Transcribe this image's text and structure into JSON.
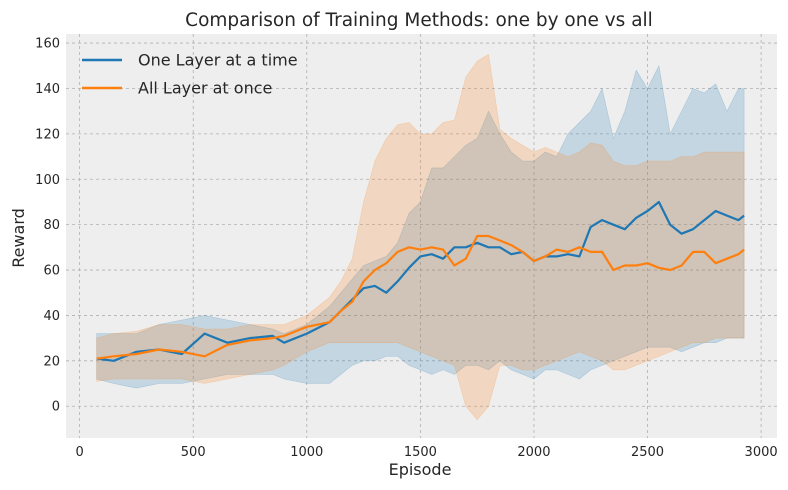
{
  "chart_data": {
    "type": "line",
    "title": "Comparison of Training Methods: one by one vs all",
    "xlabel": "Episode",
    "ylabel": "Reward",
    "xlim": [
      -60,
      3070
    ],
    "ylim": [
      -14,
      164
    ],
    "xticks": [
      0,
      500,
      1000,
      1500,
      2000,
      2500,
      3000
    ],
    "yticks": [
      0,
      20,
      40,
      60,
      80,
      100,
      120,
      140,
      160
    ],
    "grid": true,
    "legend_position": "top-left",
    "colors": {
      "plot_bg": "#eeeeee",
      "grid": "#b0b0b0"
    },
    "series": [
      {
        "name": "One Layer at a time",
        "color": "#1f77b4",
        "x": [
          75,
          150,
          250,
          350,
          450,
          550,
          650,
          750,
          850,
          900,
          1000,
          1100,
          1200,
          1250,
          1300,
          1350,
          1400,
          1450,
          1500,
          1550,
          1600,
          1650,
          1700,
          1750,
          1800,
          1850,
          1900,
          1950,
          2000,
          2050,
          2100,
          2150,
          2200,
          2250,
          2300,
          2350,
          2400,
          2450,
          2500,
          2550,
          2600,
          2650,
          2700,
          2750,
          2800,
          2850,
          2900,
          2925
        ],
        "mean": [
          21,
          20,
          24,
          25,
          23,
          32,
          28,
          30,
          31,
          28,
          32,
          37,
          47,
          52,
          53,
          50,
          55,
          61,
          66,
          67,
          65,
          70,
          70,
          72,
          70,
          70,
          67,
          68,
          64,
          66,
          66,
          67,
          66,
          79,
          82,
          80,
          78,
          83,
          86,
          90,
          80,
          76,
          78,
          82,
          86,
          84,
          82,
          84
        ],
        "upper": [
          32,
          32,
          32,
          36,
          38,
          40,
          38,
          36,
          34,
          32,
          36,
          44,
          56,
          62,
          64,
          66,
          72,
          85,
          90,
          105,
          105,
          110,
          115,
          118,
          130,
          120,
          112,
          108,
          108,
          112,
          110,
          120,
          125,
          130,
          140,
          118,
          130,
          148,
          140,
          150,
          120,
          130,
          140,
          138,
          142,
          130,
          140,
          140
        ],
        "lower": [
          12,
          10,
          8,
          10,
          10,
          12,
          14,
          14,
          14,
          12,
          10,
          10,
          18,
          20,
          20,
          22,
          22,
          18,
          16,
          14,
          16,
          14,
          18,
          18,
          16,
          20,
          16,
          14,
          12,
          16,
          16,
          14,
          12,
          16,
          18,
          20,
          22,
          24,
          26,
          26,
          26,
          24,
          26,
          28,
          28,
          30,
          30,
          30
        ]
      },
      {
        "name": "All Layer at once",
        "color": "#ff7f0e",
        "x": [
          75,
          150,
          250,
          350,
          450,
          550,
          650,
          750,
          850,
          900,
          1000,
          1100,
          1150,
          1200,
          1250,
          1300,
          1350,
          1400,
          1450,
          1500,
          1550,
          1600,
          1650,
          1700,
          1750,
          1800,
          1850,
          1900,
          1950,
          2000,
          2050,
          2100,
          2150,
          2200,
          2250,
          2300,
          2350,
          2400,
          2450,
          2500,
          2550,
          2600,
          2650,
          2700,
          2750,
          2800,
          2850,
          2900,
          2925
        ],
        "mean": [
          21,
          22,
          23,
          25,
          24,
          22,
          27,
          29,
          30,
          31,
          35,
          37,
          42,
          46,
          55,
          60,
          63,
          68,
          70,
          69,
          70,
          69,
          62,
          65,
          75,
          75,
          73,
          71,
          68,
          64,
          66,
          69,
          68,
          70,
          68,
          68,
          60,
          62,
          62,
          63,
          61,
          60,
          62,
          68,
          68,
          63,
          65,
          67,
          69
        ],
        "upper": [
          30,
          32,
          33,
          36,
          36,
          34,
          34,
          36,
          36,
          36,
          40,
          48,
          55,
          65,
          90,
          108,
          118,
          124,
          125,
          120,
          120,
          125,
          126,
          145,
          152,
          155,
          122,
          118,
          115,
          112,
          114,
          112,
          110,
          112,
          116,
          115,
          108,
          106,
          106,
          108,
          108,
          108,
          110,
          110,
          112,
          112,
          112,
          112,
          112
        ],
        "lower": [
          11,
          12,
          12,
          12,
          12,
          10,
          12,
          14,
          16,
          18,
          24,
          28,
          28,
          28,
          28,
          28,
          28,
          28,
          26,
          24,
          22,
          20,
          18,
          0,
          -6,
          0,
          18,
          18,
          16,
          16,
          18,
          20,
          22,
          24,
          22,
          20,
          16,
          16,
          18,
          20,
          22,
          24,
          26,
          28,
          28,
          30,
          30,
          30,
          30
        ]
      }
    ]
  }
}
